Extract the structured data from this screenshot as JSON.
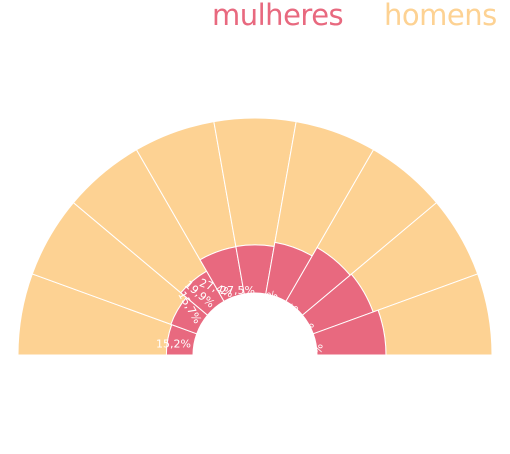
{
  "colors": {
    "women": "#e8697f",
    "men": "#fdd293",
    "divider": "#ffffff"
  },
  "chart_data": {
    "type": "pie",
    "shape": "semicircle",
    "series": [
      {
        "name": "mulheres",
        "color": "#e8697f",
        "values": [
          15.2,
          15.7,
          19.9,
          27.4,
          27.5,
          29.9,
          35.5,
          36.4,
          39.4
        ]
      },
      {
        "name": "homens",
        "color": "#fdd293",
        "values": [
          84.8,
          84.3,
          80.1,
          72.6,
          72.5,
          70.1,
          64.5,
          63.6,
          60.6
        ]
      }
    ],
    "labels": [
      "15,2%",
      "15,7%",
      "19,9%",
      "27,4%",
      "27,5%",
      "29,9%",
      "35,5%",
      "36,4%",
      "39,4%"
    ],
    "legend": {
      "position": "top-right",
      "entries": [
        "mulheres",
        "homens"
      ]
    }
  }
}
